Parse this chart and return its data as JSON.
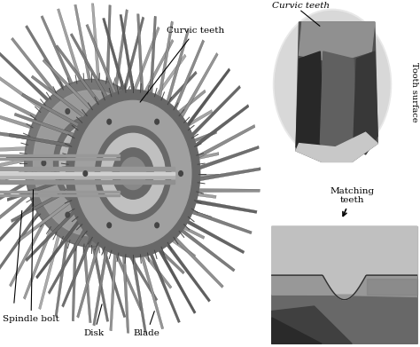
{
  "bg_color": "#ffffff",
  "labels": {
    "spindle_bolt": "Spindle bolt",
    "disk": "Disk",
    "blade": "Blade",
    "curvic_teeth": "Curvic teeth",
    "tooth_surface": "Tooth surface",
    "matching_teeth": "Matching\nteeth"
  }
}
